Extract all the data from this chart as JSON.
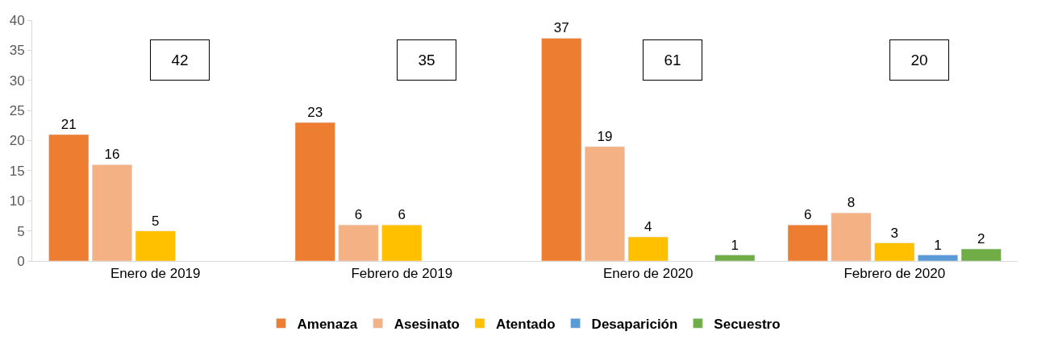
{
  "chart_data": {
    "type": "bar",
    "categories": [
      "Enero de 2019",
      "Febrero de 2019",
      "Enero de 2020",
      "Febrero de 2020"
    ],
    "series": [
      {
        "name": "Amenaza",
        "color": "#ed7d31",
        "values": [
          21,
          23,
          37,
          6
        ]
      },
      {
        "name": "Asesinato",
        "color": "#f4b183",
        "values": [
          16,
          6,
          19,
          8
        ]
      },
      {
        "name": "Atentado",
        "color": "#ffc000",
        "values": [
          5,
          6,
          4,
          3
        ]
      },
      {
        "name": "Desaparición",
        "color": "#5b9bd5",
        "values": [
          null,
          null,
          null,
          1
        ]
      },
      {
        "name": "Secuestro",
        "color": "#70ad47",
        "values": [
          null,
          null,
          1,
          2
        ]
      }
    ],
    "ylim": [
      0,
      40
    ],
    "yticks": [
      0,
      5,
      10,
      15,
      20,
      25,
      30,
      35,
      40
    ],
    "grid": false,
    "legend": "bottom",
    "data_labels": true,
    "annotations": [
      "42",
      "35",
      "61",
      "20"
    ]
  }
}
